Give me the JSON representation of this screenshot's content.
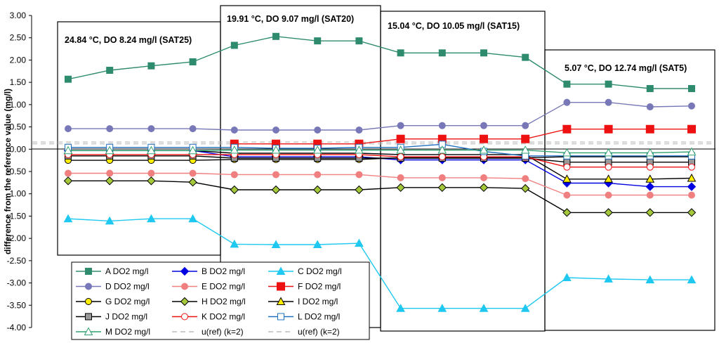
{
  "chart_data": {
    "type": "line",
    "ylabel": "difference from the reference value (mg/l)",
    "ylim": [
      -4.0,
      3.0
    ],
    "yticks": [
      "3.00",
      "2.50",
      "2.00",
      "1.50",
      "1.00",
      "0.50",
      "0.00",
      "-0.50",
      "-1.00",
      "-1.50",
      "-2.00",
      "-2.50",
      "-3.00",
      "-3.50",
      "-4.00"
    ],
    "x": [
      1,
      2,
      3,
      4,
      5,
      6,
      7,
      8,
      9,
      10,
      11,
      12,
      13,
      14,
      15,
      16
    ],
    "groups": [
      {
        "label": "24.84 °C, DO 8.24 mg/l (SAT25)",
        "from": 1,
        "to": 4
      },
      {
        "label": "19.91 °C, DO 9.07 mg/l (SAT20)",
        "from": 5,
        "to": 8
      },
      {
        "label": "15.04 °C, DO 10.05 mg/l (SAT15)",
        "from": 9,
        "to": 12
      },
      {
        "label": "5.07 °C, DO 12.74 mg/l (SAT5)",
        "from": 13,
        "to": 16
      }
    ],
    "series": [
      {
        "name": "A DO2 mg/l",
        "color": "#2e8b6e",
        "marker": "square",
        "values": [
          1.57,
          1.77,
          1.87,
          1.96,
          2.33,
          2.53,
          2.43,
          2.43,
          2.16,
          2.16,
          2.16,
          2.06,
          1.46,
          1.46,
          1.36,
          1.36
        ]
      },
      {
        "name": "B DO2 mg/l",
        "color": "#0000e0",
        "marker": "diamond",
        "values": [
          -0.03,
          -0.03,
          -0.03,
          -0.03,
          -0.17,
          -0.17,
          -0.17,
          -0.17,
          -0.24,
          -0.24,
          -0.24,
          -0.24,
          -0.76,
          -0.76,
          -0.84,
          -0.84
        ]
      },
      {
        "name": "C DO2 mg/l",
        "color": "#1ec8f0",
        "marker": "triangle",
        "values": [
          -1.56,
          -1.61,
          -1.56,
          -1.56,
          -2.13,
          -2.14,
          -2.14,
          -2.11,
          -3.57,
          -3.57,
          -3.57,
          -3.57,
          -2.88,
          -2.91,
          -2.93,
          -2.93
        ]
      },
      {
        "name": "D DO2 mg/l",
        "color": "#7878b8",
        "marker": "circle",
        "values": [
          0.46,
          0.46,
          0.46,
          0.46,
          0.43,
          0.43,
          0.43,
          0.43,
          0.53,
          0.53,
          0.53,
          0.53,
          1.05,
          1.05,
          0.95,
          0.97
        ]
      },
      {
        "name": "E DO2 mg/l",
        "color": "#f08080",
        "marker": "circle",
        "values": [
          -0.54,
          -0.54,
          -0.54,
          -0.54,
          -0.57,
          -0.57,
          -0.57,
          -0.57,
          -0.64,
          -0.64,
          -0.64,
          -0.66,
          -1.03,
          -1.03,
          -1.03,
          -1.03
        ]
      },
      {
        "name": "F DO2 mg/l",
        "color": "#ee1111",
        "marker": "square",
        "values": [
          null,
          null,
          null,
          null,
          0.12,
          0.12,
          0.12,
          0.12,
          0.23,
          0.23,
          0.23,
          0.23,
          0.45,
          0.45,
          0.45,
          0.45
        ]
      },
      {
        "name": "G DO2 mg/l",
        "color": "#000000",
        "fill": "#ffee00",
        "marker": "circle",
        "values": [
          -0.25,
          -0.25,
          -0.25,
          -0.25,
          -0.23,
          -0.23,
          -0.23,
          -0.23,
          -0.19,
          -0.19,
          -0.19,
          -0.19,
          -0.17,
          -0.17,
          -0.17,
          -0.17
        ]
      },
      {
        "name": "H DO2 mg/l",
        "color": "#000000",
        "fill": "#a4c83a",
        "marker": "diamond",
        "values": [
          -0.71,
          -0.71,
          -0.71,
          -0.74,
          -0.91,
          -0.91,
          -0.91,
          -0.91,
          -0.86,
          -0.86,
          -0.86,
          -0.88,
          -1.42,
          -1.42,
          -1.42,
          -1.42
        ]
      },
      {
        "name": "I DO2 mg/l",
        "color": "#000000",
        "fill": "#ffee00",
        "marker": "triangle",
        "values": [
          -0.03,
          -0.03,
          -0.03,
          -0.03,
          -0.09,
          -0.09,
          -0.09,
          -0.09,
          -0.12,
          -0.12,
          -0.12,
          -0.12,
          -0.67,
          -0.67,
          -0.67,
          -0.65
        ]
      },
      {
        "name": "J DO2 mg/l",
        "color": "#000000",
        "fill": "#999999",
        "marker": "square",
        "values": [
          -0.15,
          -0.15,
          -0.15,
          -0.15,
          -0.2,
          -0.2,
          -0.2,
          -0.2,
          -0.2,
          -0.2,
          -0.2,
          -0.2,
          -0.29,
          -0.29,
          -0.29,
          -0.29
        ]
      },
      {
        "name": "K DO2 mg/l",
        "color": "#ee1111",
        "fill": "#ffffff",
        "marker": "circle",
        "values": [
          -0.12,
          -0.12,
          -0.12,
          -0.12,
          -0.12,
          -0.12,
          -0.12,
          -0.12,
          -0.17,
          -0.17,
          -0.17,
          -0.17,
          -0.4,
          -0.4,
          -0.4,
          -0.4
        ]
      },
      {
        "name": "L DO2 mg/l",
        "color": "#2070c0",
        "fill": "#ffffff",
        "marker": "square",
        "values": [
          0.04,
          0.04,
          0.04,
          0.04,
          0.04,
          0.02,
          0.02,
          0.04,
          0.04,
          0.11,
          -0.05,
          -0.15,
          -0.15,
          -0.15,
          -0.15,
          -0.15
        ]
      },
      {
        "name": "M DO2 mg/l",
        "color": "#30a070",
        "fill": "#ffffff",
        "marker": "triangle",
        "values": [
          -0.03,
          -0.03,
          -0.03,
          -0.03,
          -0.02,
          -0.02,
          -0.02,
          -0.02,
          -0.02,
          -0.02,
          -0.02,
          -0.02,
          -0.08,
          -0.08,
          -0.08,
          -0.06
        ]
      }
    ],
    "reference_lines": [
      {
        "name": "u(ref) (k=2)",
        "color": "#bbbbbb",
        "value": 0.12
      },
      {
        "name": "u(ref) (k=2)",
        "color": "#bbbbbb",
        "value": 0.16
      }
    ]
  }
}
